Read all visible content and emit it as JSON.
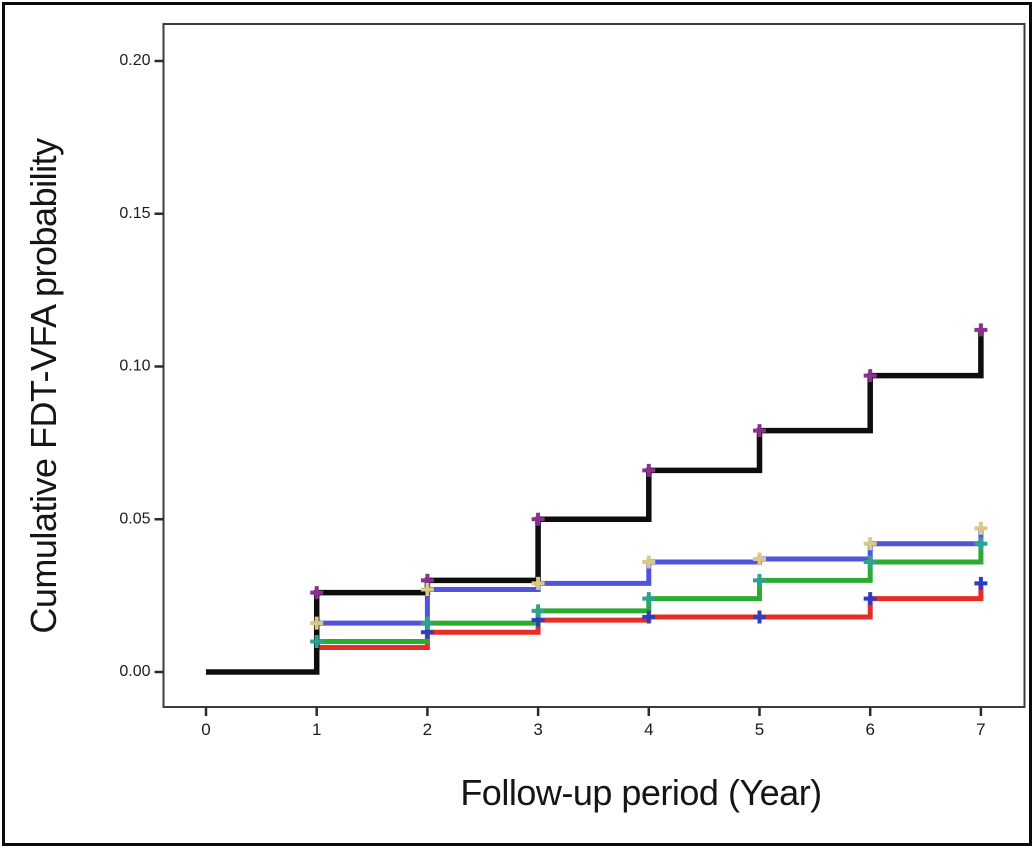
{
  "figure": {
    "border_color": "#0a0a0a",
    "frame_color": "#3c3c3c",
    "background": "#ffffff"
  },
  "chart_data": {
    "type": "line",
    "subtype": "cumulative-incidence-step",
    "title": "",
    "xlabel": "Follow-up period (Year)",
    "ylabel": "Cumulative FDT-VFA probability",
    "xlim": [
      0,
      7
    ],
    "ylim": [
      0,
      0.212
    ],
    "grid": false,
    "legend_position": "none",
    "x_ticks": [
      "0",
      "1",
      "2",
      "3",
      "4",
      "5",
      "6",
      "7"
    ],
    "y_ticks": [
      "0.00",
      "0.05",
      "0.10",
      "0.15",
      "0.20"
    ],
    "x": [
      0,
      1,
      2,
      3,
      4,
      5,
      6,
      7
    ],
    "series": [
      {
        "name": "black",
        "color": "#0d0d0d",
        "line_width": 5.5,
        "values": [
          0,
          0.026,
          0.03,
          0.05,
          0.066,
          0.079,
          0.097,
          0.112
        ],
        "censor_marker": "+",
        "censor_color": "#8a3190",
        "censor_years": [
          1,
          2,
          3,
          4,
          5,
          6,
          7
        ]
      },
      {
        "name": "blue",
        "color": "#5153dd",
        "line_width": 5,
        "values": [
          0,
          0.016,
          0.027,
          0.029,
          0.036,
          0.037,
          0.042,
          0.047
        ],
        "censor_marker": "+",
        "censor_color": "#d8c88a",
        "censor_years": [
          1,
          2,
          3,
          4,
          5,
          6,
          7
        ]
      },
      {
        "name": "green",
        "color": "#2cab33",
        "line_width": 5,
        "values": [
          0,
          0.01,
          0.016,
          0.02,
          0.024,
          0.03,
          0.036,
          0.042
        ],
        "censor_marker": "+",
        "censor_color": "#2fa18f",
        "censor_years": [
          1,
          2,
          3,
          4,
          5,
          6,
          7
        ]
      },
      {
        "name": "red",
        "color": "#e62e26",
        "line_width": 5,
        "values": [
          0,
          0.008,
          0.013,
          0.017,
          0.018,
          0.018,
          0.024,
          0.029
        ],
        "censor_marker": "+",
        "censor_color": "#2c3dbe",
        "censor_years": [
          2,
          3,
          4,
          5,
          6,
          7
        ]
      }
    ]
  }
}
